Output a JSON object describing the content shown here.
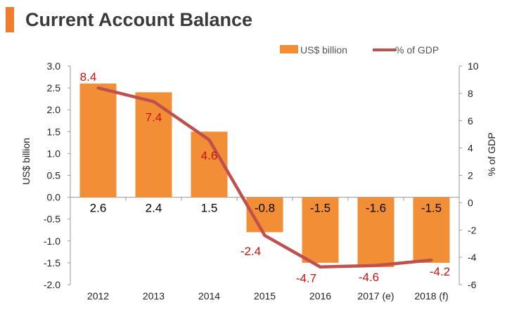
{
  "page": {
    "title": "Current Account Balance"
  },
  "chart_data": {
    "type": "bar",
    "categories": [
      "2012",
      "2013",
      "2014",
      "2015",
      "2016",
      "2017 (e)",
      "2018 (f)"
    ],
    "series": [
      {
        "name": "US$ billion",
        "type": "bar",
        "axis": "left",
        "values": [
          2.6,
          2.4,
          1.5,
          -0.8,
          -1.5,
          -1.6,
          -1.5
        ],
        "color": "#f28e35"
      },
      {
        "name": "% of GDP",
        "type": "line",
        "axis": "right",
        "values": [
          8.4,
          7.4,
          4.6,
          -2.4,
          -4.7,
          -4.6,
          -4.2
        ],
        "color": "#c0504d"
      }
    ],
    "ylabel_left": "US$ billion",
    "ylabel_right": "% of GDP",
    "ylim_left": [
      -2.0,
      3.0
    ],
    "ylim_right": [
      -6,
      10
    ],
    "yticks_left": [
      "3.0",
      "2.5",
      "2.0",
      "1.5",
      "1.0",
      "0.5",
      "0.0",
      "-0.5",
      "-1.0",
      "-1.5",
      "-2.0"
    ],
    "yticks_right": [
      "10",
      "8",
      "6",
      "4",
      "2",
      "0",
      "-2",
      "-4",
      "-6"
    ],
    "bar_labels": [
      "2.6",
      "2.4",
      "1.5",
      "-0.8",
      "-1.5",
      "-1.6",
      "-1.5"
    ],
    "line_labels": [
      "8.4",
      "7.4",
      "4.6",
      "-2.4",
      "-4.7",
      "-4.6",
      "-4.2"
    ],
    "legend_placement": "top-right",
    "grid": false
  }
}
